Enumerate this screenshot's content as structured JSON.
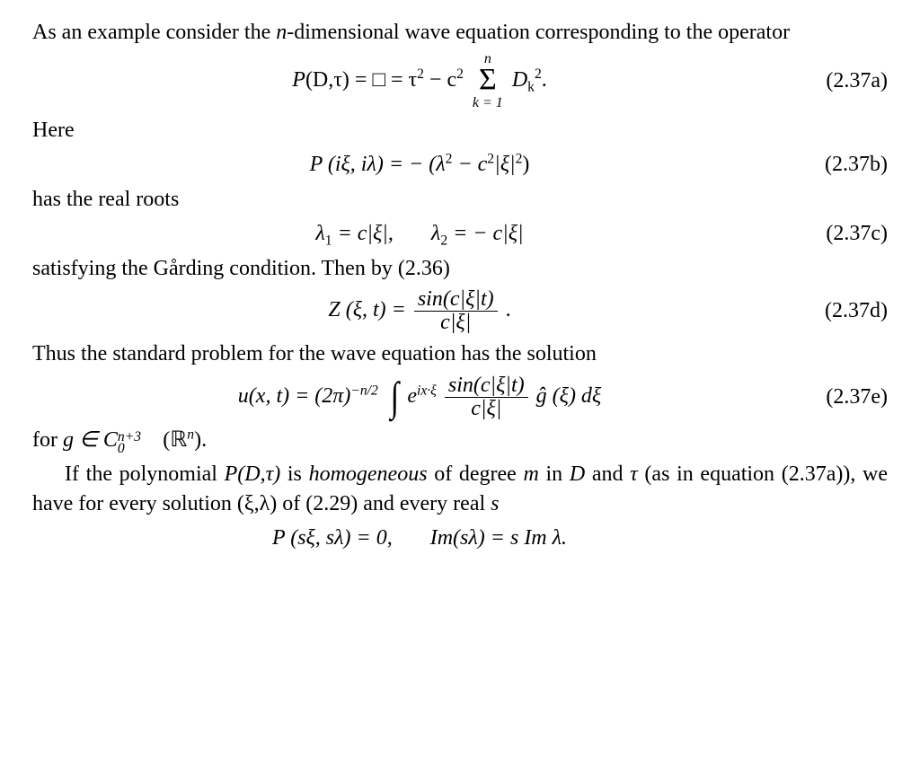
{
  "p1": "As an example consider the ",
  "p1b": "-dimensional wave equation corresponding to the operator",
  "n_it": "n",
  "eq_a": {
    "lhs1": "P",
    "lhs2": "(D,τ)",
    "eq": " = □ = τ",
    "sq1": "2",
    "minus": " − c",
    "sq2": "2",
    "sum_top": "n",
    "sum_bot": "k = 1",
    "D": " D",
    "ksub": "k",
    "sq3": "2",
    "dot": "."
  },
  "num_a": "(2.37a)",
  "p2": "Here",
  "eq_b": {
    "lhs": "P (iξ, iλ) = − (λ",
    "sq1": "2",
    "mid": " − c",
    "sq2": "2",
    "xi": "|ξ|",
    "sq3": "2",
    "end": ")"
  },
  "num_b": "(2.37b)",
  "p3": "has the real roots",
  "eq_c": {
    "l1": "λ",
    "s1": "1",
    "eq1": " = c|ξ|,",
    "l2": "λ",
    "s2": "2",
    "eq2": " = − c|ξ|"
  },
  "num_c": "(2.37c)",
  "p4": "satisfying the Gårding condition. Then by (2.36)",
  "eq_d": {
    "lhs": "Z (ξ, t) = ",
    "num": "sin(c|ξ|t)",
    "den": "c|ξ|",
    "dot": " ."
  },
  "num_d": "(2.37d)",
  "p5": "Thus the standard problem for the wave equation has the solution",
  "eq_e": {
    "lhs1": "u(x, t) = (2π)",
    "exp": "−n/2",
    "e": "e",
    "eexp": "ix·ξ",
    "num": "sin(c|ξ|t)",
    "den": "c|ξ|",
    "ghat": " ĝ (ξ) dξ"
  },
  "num_e": "(2.37e)",
  "p6a": "for ",
  "p6b": "g ∈ C",
  "p6sup": "n+3",
  "p6sub": "0",
  "p6c": "(ℝ",
  "p6n": "n",
  "p6d": ").",
  "p7a": "If the polynomial ",
  "p7op": "P(D,τ)",
  "p7b": " is ",
  "p7h": "homogeneous",
  "p7c": " of degree ",
  "p7m": "m",
  "p7d": " in ",
  "p7D": "D",
  "p7e": " and ",
  "p7tau": "τ",
  "p7f": " (as in equation (2.37a)), we have for every solution (ξ,λ) of (2.29) and every real ",
  "p7s": "s",
  "eq_f": {
    "l": "P (sξ, sλ) = 0,",
    "r": "Im(sλ) = s Im λ."
  }
}
